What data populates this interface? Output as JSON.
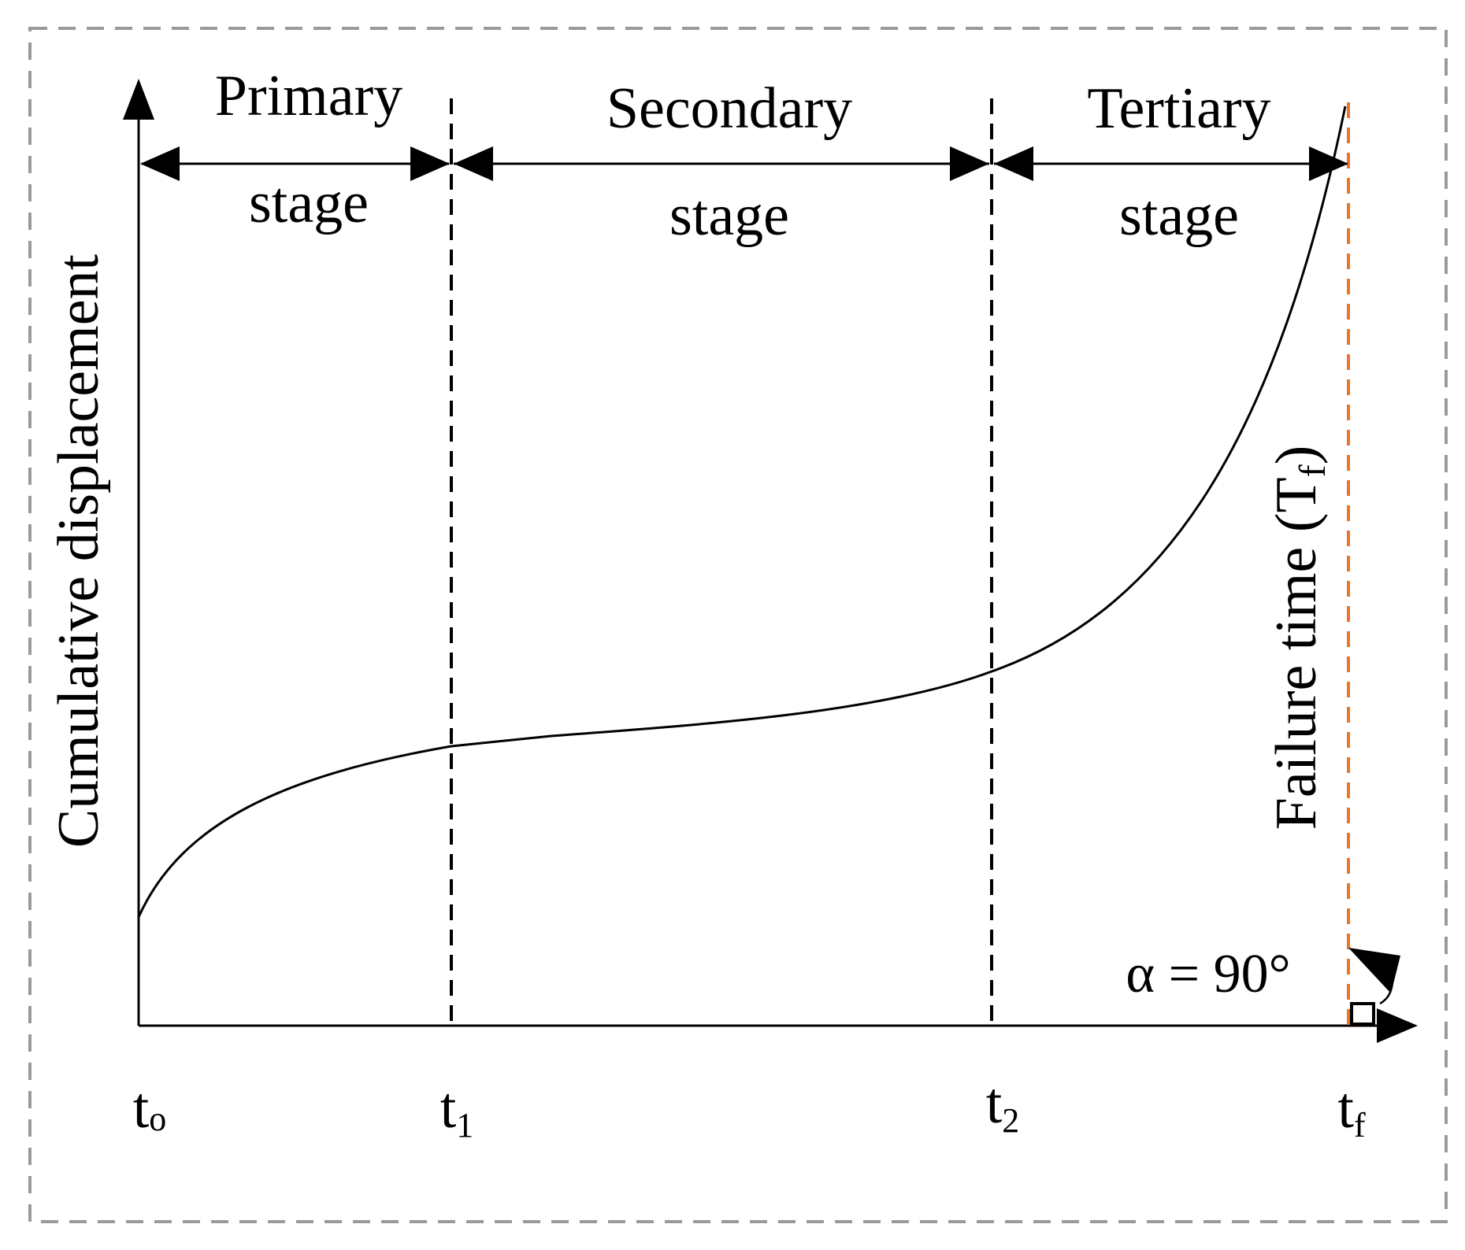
{
  "diagram": {
    "y_axis_label": "Cumulative displacement",
    "failure_label_main": "Failure time (T",
    "failure_label_sub": "f",
    "failure_label_close": ")",
    "angle_label": "α = 90°",
    "stages": [
      {
        "name": "Primary",
        "word": "stage"
      },
      {
        "name": "Secondary",
        "word": "stage"
      },
      {
        "name": "Tertiary",
        "word": "stage"
      }
    ],
    "time_ticks": [
      {
        "base": "t",
        "sub": "o"
      },
      {
        "base": "t",
        "sub": "1"
      },
      {
        "base": "t",
        "sub": "2"
      },
      {
        "base": "t",
        "sub": "f"
      }
    ],
    "colors": {
      "ink": "#000000",
      "frame": "#9a9a9a",
      "failure_line": "#e8762a"
    }
  }
}
